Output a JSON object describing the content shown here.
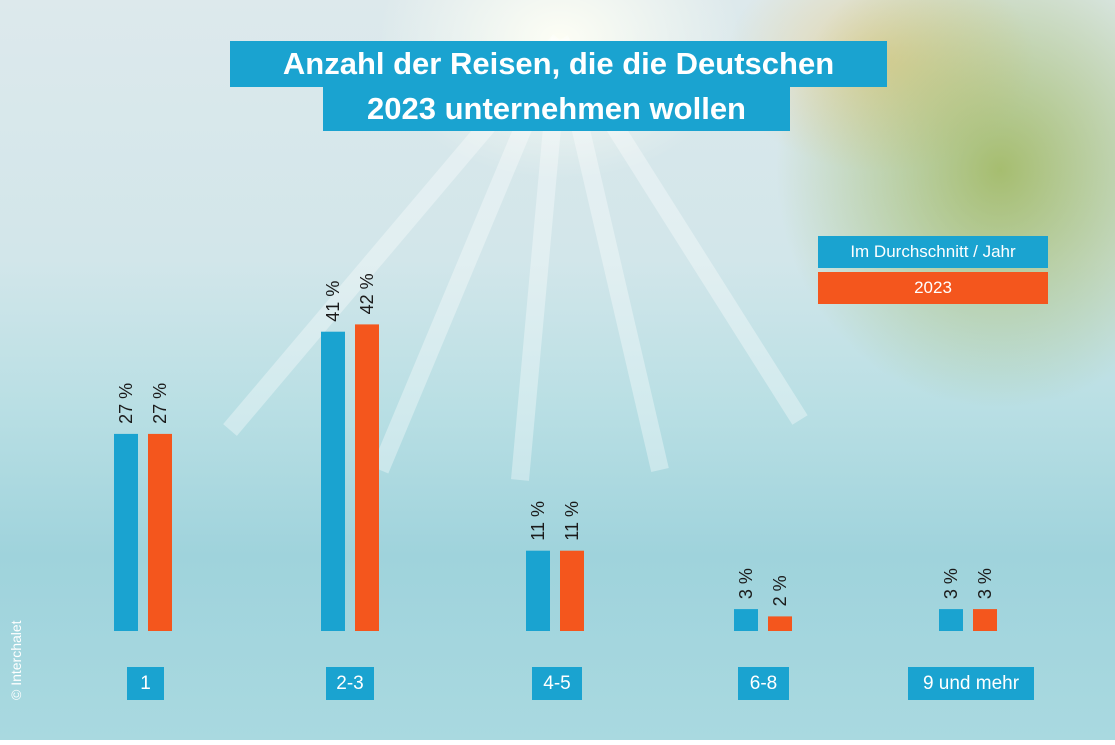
{
  "title_line_1": "Anzahl der Reisen, die die Deutschen",
  "title_line_2": "2023 unternehmen wollen",
  "copyright": "© Interchalet",
  "colors": {
    "series_a": "#1aa3d0",
    "series_b": "#f4561d",
    "label_bg": "#1aa3d0"
  },
  "chart_data": {
    "type": "bar",
    "title": "Anzahl der Reisen, die die Deutschen 2023 unternehmen wollen",
    "categories": [
      "1",
      "2-3",
      "4-5",
      "6-8",
      "9 und mehr"
    ],
    "series": [
      {
        "name": "Im Durchschnitt / Jahr",
        "values": [
          27,
          41,
          11,
          3,
          3
        ],
        "labels": [
          "27 %",
          "41 %",
          "11 %",
          "3 %",
          "3 %"
        ]
      },
      {
        "name": "2023",
        "values": [
          27,
          42,
          11,
          2,
          3
        ],
        "labels": [
          "27 %",
          "42 %",
          "11 %",
          "2 %",
          "3 %"
        ]
      }
    ],
    "unit": "%",
    "legend_position": "top-right",
    "grid": false
  }
}
